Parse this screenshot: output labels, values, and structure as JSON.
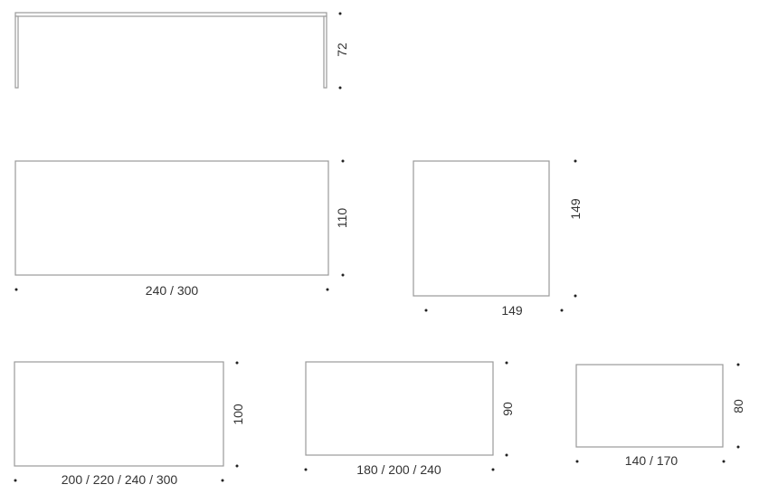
{
  "colors": {
    "outline": "#9a9a9a",
    "text": "#333333",
    "marker": "#222222"
  },
  "elevation": {
    "height_label": "72"
  },
  "tables": [
    {
      "id": "a",
      "depth_label": "110",
      "width_label": "240 / 300"
    },
    {
      "id": "b",
      "depth_label": "149",
      "width_label": "149"
    },
    {
      "id": "c",
      "depth_label": "100",
      "width_label": "200 / 220 / 240 / 300"
    },
    {
      "id": "d",
      "depth_label": "90",
      "width_label": "180 / 200 / 240"
    },
    {
      "id": "e",
      "depth_label": "80",
      "width_label": "140 / 170"
    }
  ]
}
